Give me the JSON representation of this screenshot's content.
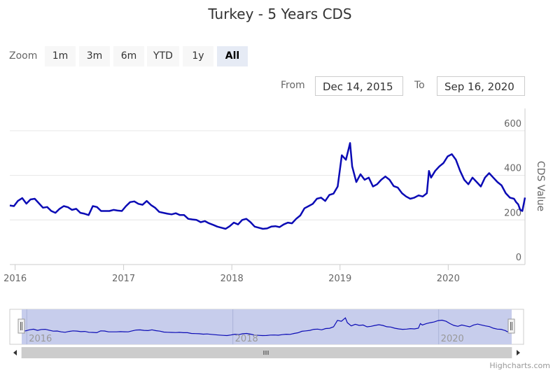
{
  "title": "Turkey - 5 Years CDS",
  "zoom": {
    "label": "Zoom",
    "buttons": [
      "1m",
      "3m",
      "6m",
      "YTD",
      "1y",
      "All"
    ],
    "active": "All"
  },
  "range": {
    "from_label": "From",
    "from_value": "Dec 14, 2015",
    "to_label": "To",
    "to_value": "Sep 16, 2020"
  },
  "credits": "Highcharts.com",
  "colors": {
    "series": "#0b0bb5",
    "navigator_mask": "#c7cdec",
    "grid": "#e6e6e6"
  },
  "chart_data": {
    "type": "line",
    "title": "Turkey - 5 Years CDS",
    "ylabel": "CDS Value",
    "xlabel": "",
    "ylim": [
      0,
      700
    ],
    "xlim": [
      "2015-12-14",
      "2020-09-16"
    ],
    "y_ticks": [
      0,
      200,
      400,
      600
    ],
    "x_ticks": [
      "2016",
      "2017",
      "2018",
      "2019",
      "2020"
    ],
    "navigator_x_ticks": [
      "2016",
      "2018",
      "2020"
    ],
    "grid": true,
    "legend": "none",
    "series": [
      {
        "values": [
          [
            "2015-12-14",
            265
          ],
          [
            "2015-12-28",
            262
          ],
          [
            "2016-01-10",
            285
          ],
          [
            "2016-01-25",
            298
          ],
          [
            "2016-02-08",
            273
          ],
          [
            "2016-02-22",
            292
          ],
          [
            "2016-03-07",
            295
          ],
          [
            "2016-03-21",
            275
          ],
          [
            "2016-04-04",
            255
          ],
          [
            "2016-04-18",
            258
          ],
          [
            "2016-05-02",
            240
          ],
          [
            "2016-05-16",
            232
          ],
          [
            "2016-05-30",
            250
          ],
          [
            "2016-06-13",
            262
          ],
          [
            "2016-06-27",
            257
          ],
          [
            "2016-07-11",
            245
          ],
          [
            "2016-07-25",
            250
          ],
          [
            "2016-08-08",
            232
          ],
          [
            "2016-08-22",
            228
          ],
          [
            "2016-09-05",
            222
          ],
          [
            "2016-09-19",
            262
          ],
          [
            "2016-10-03",
            258
          ],
          [
            "2016-10-17",
            240
          ],
          [
            "2016-10-31",
            240
          ],
          [
            "2016-11-14",
            240
          ],
          [
            "2016-11-28",
            245
          ],
          [
            "2016-12-12",
            242
          ],
          [
            "2016-12-26",
            240
          ],
          [
            "2017-01-09",
            262
          ],
          [
            "2017-01-23",
            280
          ],
          [
            "2017-02-06",
            283
          ],
          [
            "2017-02-20",
            272
          ],
          [
            "2017-03-06",
            268
          ],
          [
            "2017-03-20",
            285
          ],
          [
            "2017-04-03",
            267
          ],
          [
            "2017-04-17",
            255
          ],
          [
            "2017-05-01",
            236
          ],
          [
            "2017-05-15",
            232
          ],
          [
            "2017-05-29",
            228
          ],
          [
            "2017-06-12",
            225
          ],
          [
            "2017-06-26",
            230
          ],
          [
            "2017-07-10",
            222
          ],
          [
            "2017-07-24",
            222
          ],
          [
            "2017-08-07",
            205
          ],
          [
            "2017-08-21",
            202
          ],
          [
            "2017-09-04",
            200
          ],
          [
            "2017-09-18",
            190
          ],
          [
            "2017-10-02",
            195
          ],
          [
            "2017-10-16",
            185
          ],
          [
            "2017-10-30",
            178
          ],
          [
            "2017-11-13",
            170
          ],
          [
            "2017-11-27",
            165
          ],
          [
            "2017-12-11",
            160
          ],
          [
            "2017-12-25",
            172
          ],
          [
            "2018-01-08",
            188
          ],
          [
            "2018-01-22",
            180
          ],
          [
            "2018-02-05",
            200
          ],
          [
            "2018-02-19",
            205
          ],
          [
            "2018-03-05",
            190
          ],
          [
            "2018-03-19",
            170
          ],
          [
            "2018-04-02",
            165
          ],
          [
            "2018-04-16",
            160
          ],
          [
            "2018-04-30",
            162
          ],
          [
            "2018-05-14",
            170
          ],
          [
            "2018-05-28",
            172
          ],
          [
            "2018-06-11",
            168
          ],
          [
            "2018-06-25",
            180
          ],
          [
            "2018-07-09",
            188
          ],
          [
            "2018-07-23",
            185
          ],
          [
            "2018-08-06",
            205
          ],
          [
            "2018-08-20",
            220
          ],
          [
            "2018-09-03",
            252
          ],
          [
            "2018-09-17",
            262
          ],
          [
            "2018-10-01",
            272
          ],
          [
            "2018-10-15",
            295
          ],
          [
            "2018-10-29",
            300
          ],
          [
            "2018-11-12",
            285
          ],
          [
            "2018-11-26",
            312
          ],
          [
            "2018-12-10",
            318
          ],
          [
            "2018-12-24",
            350
          ],
          [
            "2019-01-07",
            490
          ],
          [
            "2019-01-21",
            470
          ],
          [
            "2019-02-04",
            545
          ],
          [
            "2019-02-11",
            440
          ],
          [
            "2019-02-25",
            370
          ],
          [
            "2019-03-11",
            405
          ],
          [
            "2019-03-25",
            380
          ],
          [
            "2019-04-08",
            390
          ],
          [
            "2019-04-22",
            350
          ],
          [
            "2019-05-06",
            360
          ],
          [
            "2019-05-20",
            380
          ],
          [
            "2019-06-03",
            395
          ],
          [
            "2019-06-17",
            380
          ],
          [
            "2019-07-01",
            352
          ],
          [
            "2019-07-15",
            345
          ],
          [
            "2019-07-29",
            320
          ],
          [
            "2019-08-12",
            305
          ],
          [
            "2019-08-26",
            295
          ],
          [
            "2019-09-09",
            300
          ],
          [
            "2019-09-23",
            310
          ],
          [
            "2019-10-07",
            305
          ],
          [
            "2019-10-21",
            320
          ],
          [
            "2019-10-28",
            420
          ],
          [
            "2019-11-04",
            390
          ],
          [
            "2019-11-18",
            420
          ],
          [
            "2019-12-02",
            440
          ],
          [
            "2019-12-16",
            455
          ],
          [
            "2019-12-30",
            485
          ],
          [
            "2020-01-13",
            495
          ],
          [
            "2020-01-27",
            470
          ],
          [
            "2020-02-10",
            420
          ],
          [
            "2020-02-24",
            380
          ],
          [
            "2020-03-09",
            360
          ],
          [
            "2020-03-23",
            390
          ],
          [
            "2020-04-06",
            370
          ],
          [
            "2020-04-20",
            350
          ],
          [
            "2020-05-04",
            390
          ],
          [
            "2020-05-18",
            410
          ],
          [
            "2020-06-01",
            390
          ],
          [
            "2020-06-15",
            370
          ],
          [
            "2020-06-29",
            355
          ],
          [
            "2020-07-13",
            320
          ],
          [
            "2020-07-27",
            300
          ],
          [
            "2020-08-10",
            295
          ],
          [
            "2020-08-17",
            280
          ],
          [
            "2020-08-24",
            270
          ],
          [
            "2020-08-31",
            245
          ],
          [
            "2020-09-07",
            240
          ],
          [
            "2020-09-16",
            300
          ]
        ]
      }
    ]
  }
}
